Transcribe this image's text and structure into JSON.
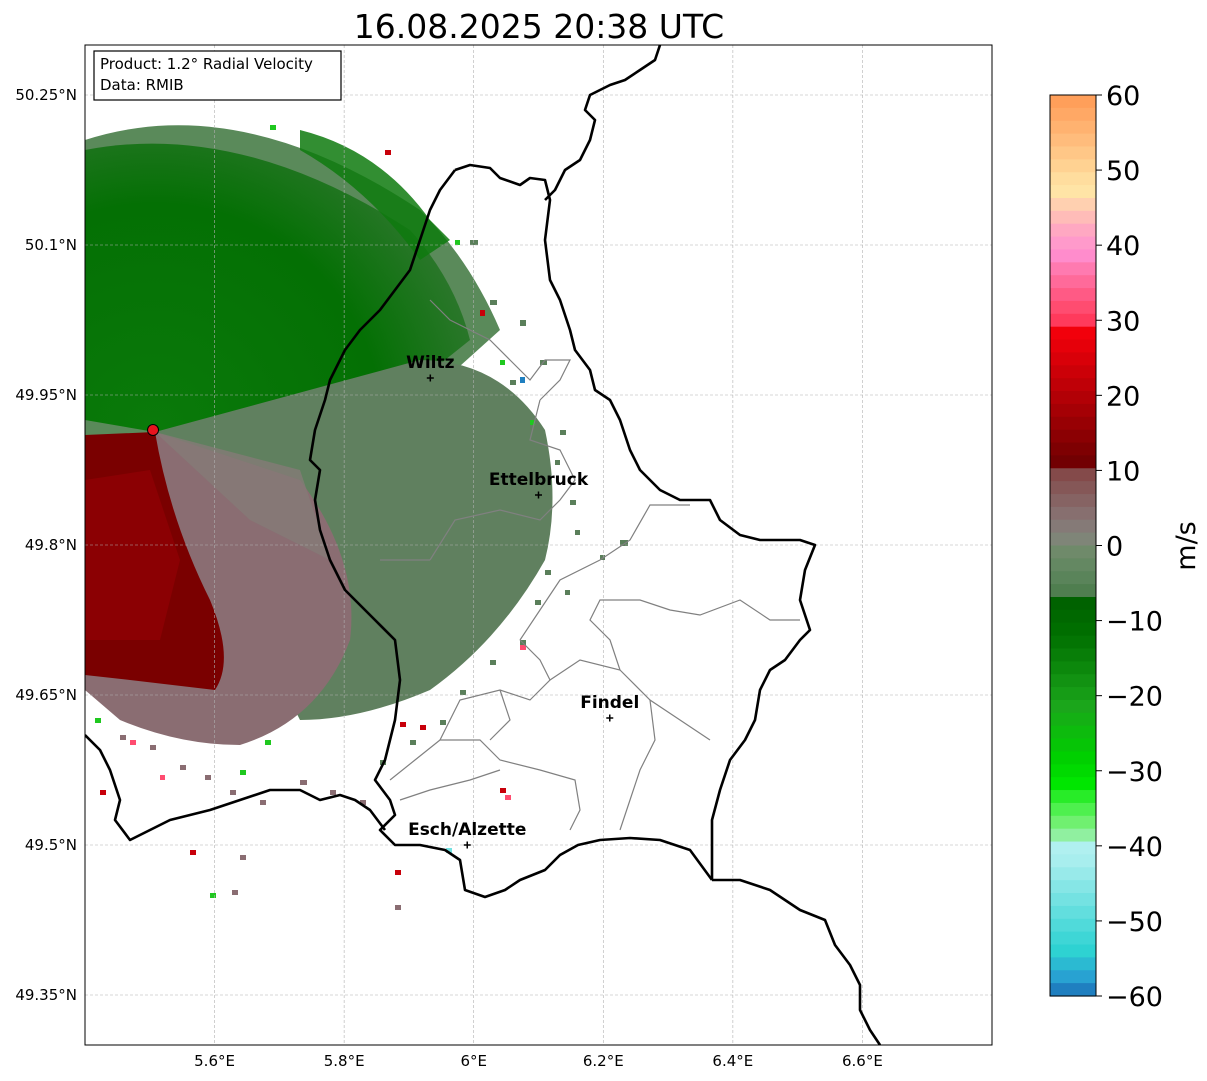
{
  "title": "16.08.2025 20:38 UTC",
  "info_box": {
    "product_line": "Product: 1.2° Radial Velocity",
    "data_line": "Data: RMIB"
  },
  "map": {
    "lon_range": [
      5.4,
      6.8
    ],
    "lat_range": [
      49.3,
      50.3
    ],
    "lat_ticks": [
      {
        "value": 50.25,
        "label": "50.25°N"
      },
      {
        "value": 50.1,
        "label": "50.1°N"
      },
      {
        "value": 49.95,
        "label": "49.95°N"
      },
      {
        "value": 49.8,
        "label": "49.8°N"
      },
      {
        "value": 49.65,
        "label": "49.65°N"
      },
      {
        "value": 49.5,
        "label": "49.5°N"
      },
      {
        "value": 49.35,
        "label": "49.35°N"
      }
    ],
    "lon_ticks": [
      {
        "value": 5.6,
        "label": "5.6°E"
      },
      {
        "value": 5.8,
        "label": "5.8°E"
      },
      {
        "value": 6.0,
        "label": "6°E"
      },
      {
        "value": 6.2,
        "label": "6.2°E"
      },
      {
        "value": 6.4,
        "label": "6.4°E"
      },
      {
        "value": 6.6,
        "label": "6.6°E"
      }
    ],
    "grid": true,
    "radar_site": {
      "lon": 5.505,
      "lat": 49.915,
      "color": "#e8141e"
    },
    "cities": [
      {
        "name": "Wiltz",
        "lon": 5.933,
        "lat": 49.967
      },
      {
        "name": "Ettelbruck",
        "lon": 6.1,
        "lat": 49.85
      },
      {
        "name": "Findel",
        "lon": 6.21,
        "lat": 49.627
      },
      {
        "name": "Esch/Alzette",
        "lon": 5.99,
        "lat": 49.5
      }
    ]
  },
  "colorbar": {
    "label": "m/s",
    "min": -60,
    "max": 60,
    "tick_values": [
      60,
      50,
      40,
      30,
      20,
      10,
      0,
      -10,
      -20,
      -30,
      -40,
      -50,
      -60
    ],
    "tick_labels": [
      "60",
      "50",
      "40",
      "30",
      "20",
      "10",
      "0",
      "−10",
      "−20",
      "−30",
      "−40",
      "−50",
      "−60"
    ],
    "colors_top_to_bottom": [
      "#ff9f5a",
      "#ffa865",
      "#ffb270",
      "#ffbc7c",
      "#ffc787",
      "#ffd292",
      "#ffdd9e",
      "#ffe4a6",
      "#ffd0b0",
      "#ffbcb8",
      "#ffa8c2",
      "#ff9acb",
      "#ff8ccc",
      "#ff7ab0",
      "#ff6a9a",
      "#ff5a85",
      "#ff4c70",
      "#ff3a5c",
      "#f2000b",
      "#e6000a",
      "#d90009",
      "#cc0008",
      "#bf0007",
      "#b20006",
      "#a50005",
      "#980004",
      "#8b0003",
      "#7e0002",
      "#720002",
      "#844a4a",
      "#855757",
      "#866363",
      "#876f6f",
      "#857a77",
      "#7f8578",
      "#6f8a6a",
      "#648862",
      "#5a845a",
      "#4f7e4f",
      "#006200",
      "#006800",
      "#006e00",
      "#037503",
      "#087e08",
      "#0c880c",
      "#129212",
      "#169c16",
      "#1ba61b",
      "#14b014",
      "#0dbb0d",
      "#06c506",
      "#00d000",
      "#00da00",
      "#00e600",
      "#28ec28",
      "#4ef04e",
      "#70f070",
      "#90f0a0",
      "#b0f0f0",
      "#a8eeee",
      "#98eaea",
      "#86e6e6",
      "#74e2e2",
      "#62dede",
      "#50dada",
      "#3ed6d6",
      "#2ed2d2",
      "#2bbad2",
      "#28a2d2",
      "#1f7fc0"
    ]
  }
}
